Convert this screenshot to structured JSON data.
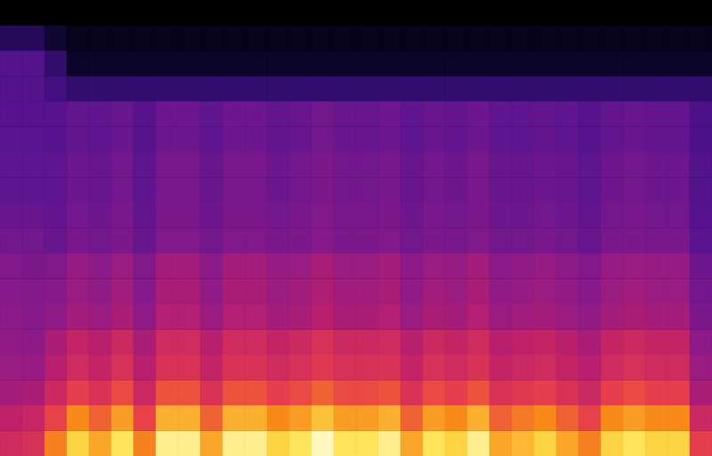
{
  "chart_data": {
    "type": "heatmap",
    "tick_labels": false,
    "grid": false,
    "cells": [
      [
        0,
        0,
        0,
        0,
        0,
        0,
        0,
        0,
        0,
        0,
        0,
        0,
        0,
        0,
        0,
        0,
        0,
        0,
        0,
        0,
        0,
        0,
        0,
        0,
        0,
        0,
        0,
        0,
        0,
        0,
        0,
        0
      ],
      [
        20,
        20,
        10,
        5,
        5,
        5,
        5,
        5,
        5,
        5,
        5,
        5,
        5,
        5,
        5,
        5,
        5,
        5,
        5,
        5,
        5,
        5,
        5,
        5,
        5,
        5,
        5,
        5,
        5,
        5,
        5,
        5
      ],
      [
        35,
        35,
        25,
        8,
        8,
        8,
        8,
        8,
        8,
        8,
        8,
        8,
        8,
        8,
        8,
        8,
        8,
        8,
        8,
        8,
        8,
        8,
        8,
        8,
        8,
        8,
        8,
        8,
        8,
        8,
        8,
        8
      ],
      [
        35,
        35,
        30,
        25,
        25,
        25,
        25,
        25,
        25,
        25,
        25,
        25,
        25,
        25,
        25,
        25,
        25,
        25,
        25,
        25,
        25,
        25,
        25,
        25,
        25,
        25,
        25,
        25,
        25,
        25,
        25,
        25
      ],
      [
        36,
        36,
        36,
        39,
        38,
        40,
        36,
        41,
        41,
        38,
        41,
        41,
        39,
        40,
        42,
        40,
        40,
        41,
        38,
        40,
        39,
        41,
        38,
        38,
        39,
        38,
        36,
        39,
        40,
        39,
        39,
        33
      ],
      [
        37,
        37,
        36,
        39,
        38,
        40,
        36,
        41,
        41,
        38,
        41,
        41,
        39,
        40,
        42,
        40,
        40,
        41,
        38,
        40,
        39,
        41,
        38,
        38,
        39,
        38,
        36,
        39,
        40,
        39,
        39,
        33
      ],
      [
        38,
        38,
        38,
        41,
        40,
        42,
        38,
        43,
        43,
        40,
        43,
        43,
        41,
        42,
        44,
        42,
        42,
        43,
        40,
        42,
        41,
        43,
        40,
        40,
        41,
        40,
        38,
        41,
        42,
        41,
        41,
        35
      ],
      [
        38,
        38,
        38,
        41,
        40,
        42,
        38,
        43,
        43,
        40,
        43,
        43,
        41,
        42,
        44,
        42,
        42,
        43,
        40,
        42,
        41,
        43,
        40,
        40,
        41,
        40,
        38,
        41,
        42,
        41,
        41,
        35
      ],
      [
        40,
        40,
        39,
        42,
        41,
        43,
        39,
        44,
        44,
        41,
        44,
        44,
        42,
        43,
        45,
        43,
        43,
        44,
        41,
        43,
        42,
        44,
        41,
        41,
        42,
        41,
        39,
        42,
        43,
        42,
        42,
        36
      ],
      [
        42,
        42,
        40,
        43,
        42,
        44,
        40,
        45,
        45,
        42,
        45,
        45,
        43,
        44,
        46,
        44,
        44,
        45,
        42,
        44,
        43,
        45,
        42,
        42,
        43,
        42,
        40,
        43,
        44,
        43,
        43,
        37
      ],
      [
        45,
        44,
        45,
        49,
        47,
        50,
        45,
        52,
        52,
        47,
        52,
        52,
        49,
        50,
        53,
        50,
        50,
        52,
        47,
        50,
        49,
        52,
        47,
        48,
        49,
        47,
        45,
        49,
        50,
        49,
        49,
        41
      ],
      [
        46,
        45,
        46,
        50,
        48,
        51,
        46,
        53,
        53,
        48,
        53,
        53,
        50,
        51,
        54,
        51,
        51,
        53,
        48,
        51,
        50,
        53,
        48,
        49,
        50,
        48,
        46,
        50,
        51,
        50,
        50,
        42
      ],
      [
        47,
        46,
        48,
        52,
        50,
        53,
        48,
        55,
        55,
        50,
        55,
        55,
        52,
        53,
        56,
        53,
        53,
        55,
        50,
        53,
        52,
        55,
        50,
        51,
        52,
        50,
        48,
        52,
        53,
        52,
        52,
        44
      ],
      [
        48,
        47,
        53,
        59,
        56,
        61,
        53,
        62,
        62,
        56,
        62,
        62,
        59,
        61,
        64,
        61,
        61,
        62,
        56,
        61,
        59,
        62,
        56,
        58,
        59,
        56,
        53,
        59,
        61,
        59,
        59,
        47
      ],
      [
        50,
        49,
        56,
        62,
        59,
        64,
        56,
        65,
        65,
        59,
        65,
        65,
        62,
        64,
        67,
        64,
        64,
        65,
        59,
        64,
        62,
        65,
        59,
        61,
        62,
        59,
        56,
        62,
        64,
        62,
        62,
        50
      ],
      [
        52,
        53,
        61,
        69,
        65,
        71,
        61,
        72,
        72,
        65,
        72,
        72,
        69,
        71,
        74,
        71,
        71,
        72,
        65,
        71,
        69,
        72,
        65,
        67,
        69,
        65,
        61,
        69,
        71,
        69,
        69,
        53
      ],
      [
        58,
        60,
        70,
        79,
        74,
        81,
        70,
        83,
        83,
        74,
        83,
        83,
        79,
        81,
        85,
        81,
        81,
        83,
        74,
        81,
        79,
        83,
        74,
        77,
        79,
        74,
        70,
        79,
        81,
        79,
        79,
        61
      ],
      [
        62,
        64,
        78,
        87,
        82,
        89,
        78,
        91,
        91,
        82,
        91,
        91,
        87,
        89,
        93,
        89,
        89,
        91,
        82,
        89,
        87,
        91,
        82,
        84,
        87,
        82,
        78,
        87,
        89,
        87,
        87,
        69
      ]
    ]
  }
}
